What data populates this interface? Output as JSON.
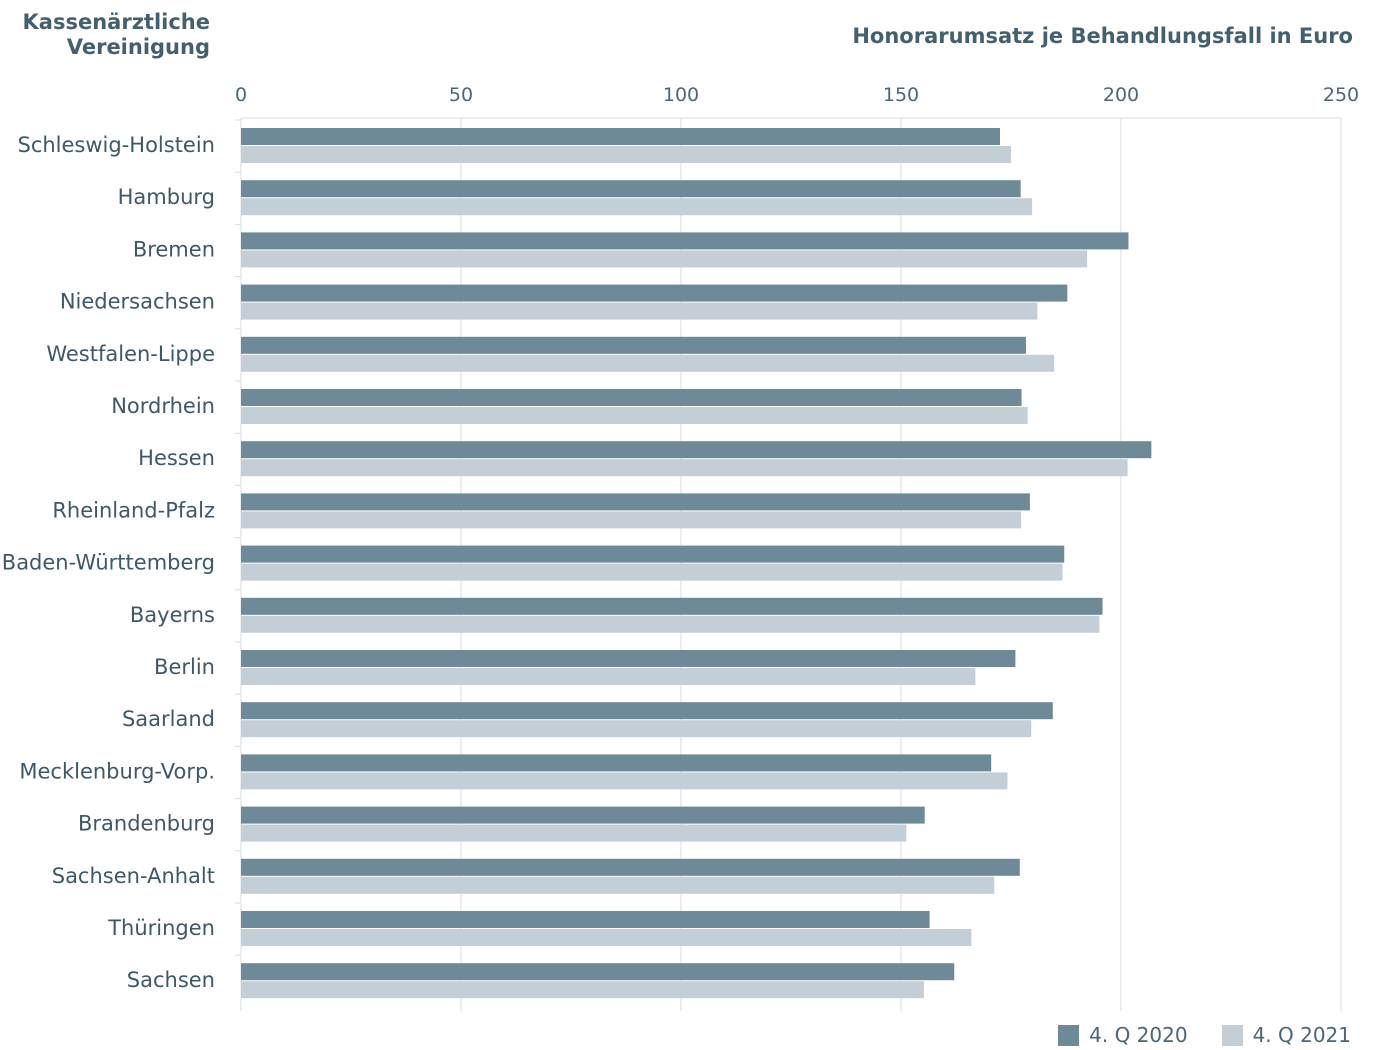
{
  "header": {
    "left_title": [
      "Kassenärztliche",
      "Vereinigung"
    ],
    "right_title": "Honorarumsatz je Behandlungsfall in Euro"
  },
  "colors": {
    "series_2020": "#6e8a99",
    "series_2021": "#c3ced6",
    "grid": "#d4dce1",
    "text": "#3f5866"
  },
  "legend": [
    {
      "label": "4. Q 2020",
      "color": "#6e8a99"
    },
    {
      "label": "4. Q 2021",
      "color": "#c3ced6"
    }
  ],
  "chart_data": {
    "type": "bar",
    "orientation": "horizontal",
    "title": "Honorarumsatz je Behandlungsfall in Euro",
    "ylabel": "Kassenärztliche Vereinigung",
    "xlim": [
      0,
      250
    ],
    "xticks": [
      0,
      50,
      100,
      150,
      200,
      250
    ],
    "grid": true,
    "legend_position": "bottom-right",
    "categories": [
      "Schleswig-Holstein",
      "Hamburg",
      "Bremen",
      "Niedersachsen",
      "Westfalen-Lippe",
      "Nordrhein",
      "Hessen",
      "Rheinland-Pfalz",
      "Baden-Württemberg",
      "Bayerns",
      "Berlin",
      "Saarland",
      "Mecklenburg-Vorp.",
      "Brandenburg",
      "Sachsen-Anhalt",
      "Thüringen",
      "Sachsen"
    ],
    "series": [
      {
        "name": "4. Q 2020",
        "values": [
          172.5,
          177.2,
          201.7,
          187.8,
          178.4,
          177.4,
          206.9,
          179.3,
          187.1,
          195.8,
          176.0,
          184.5,
          170.5,
          155.4,
          177.0,
          156.5,
          162.1
        ]
      },
      {
        "name": "4. Q 2021",
        "values": [
          175.0,
          179.8,
          192.3,
          181.0,
          184.8,
          178.8,
          201.5,
          177.3,
          186.7,
          195.1,
          166.9,
          179.6,
          174.2,
          151.2,
          171.2,
          166.0,
          155.2
        ]
      }
    ]
  }
}
